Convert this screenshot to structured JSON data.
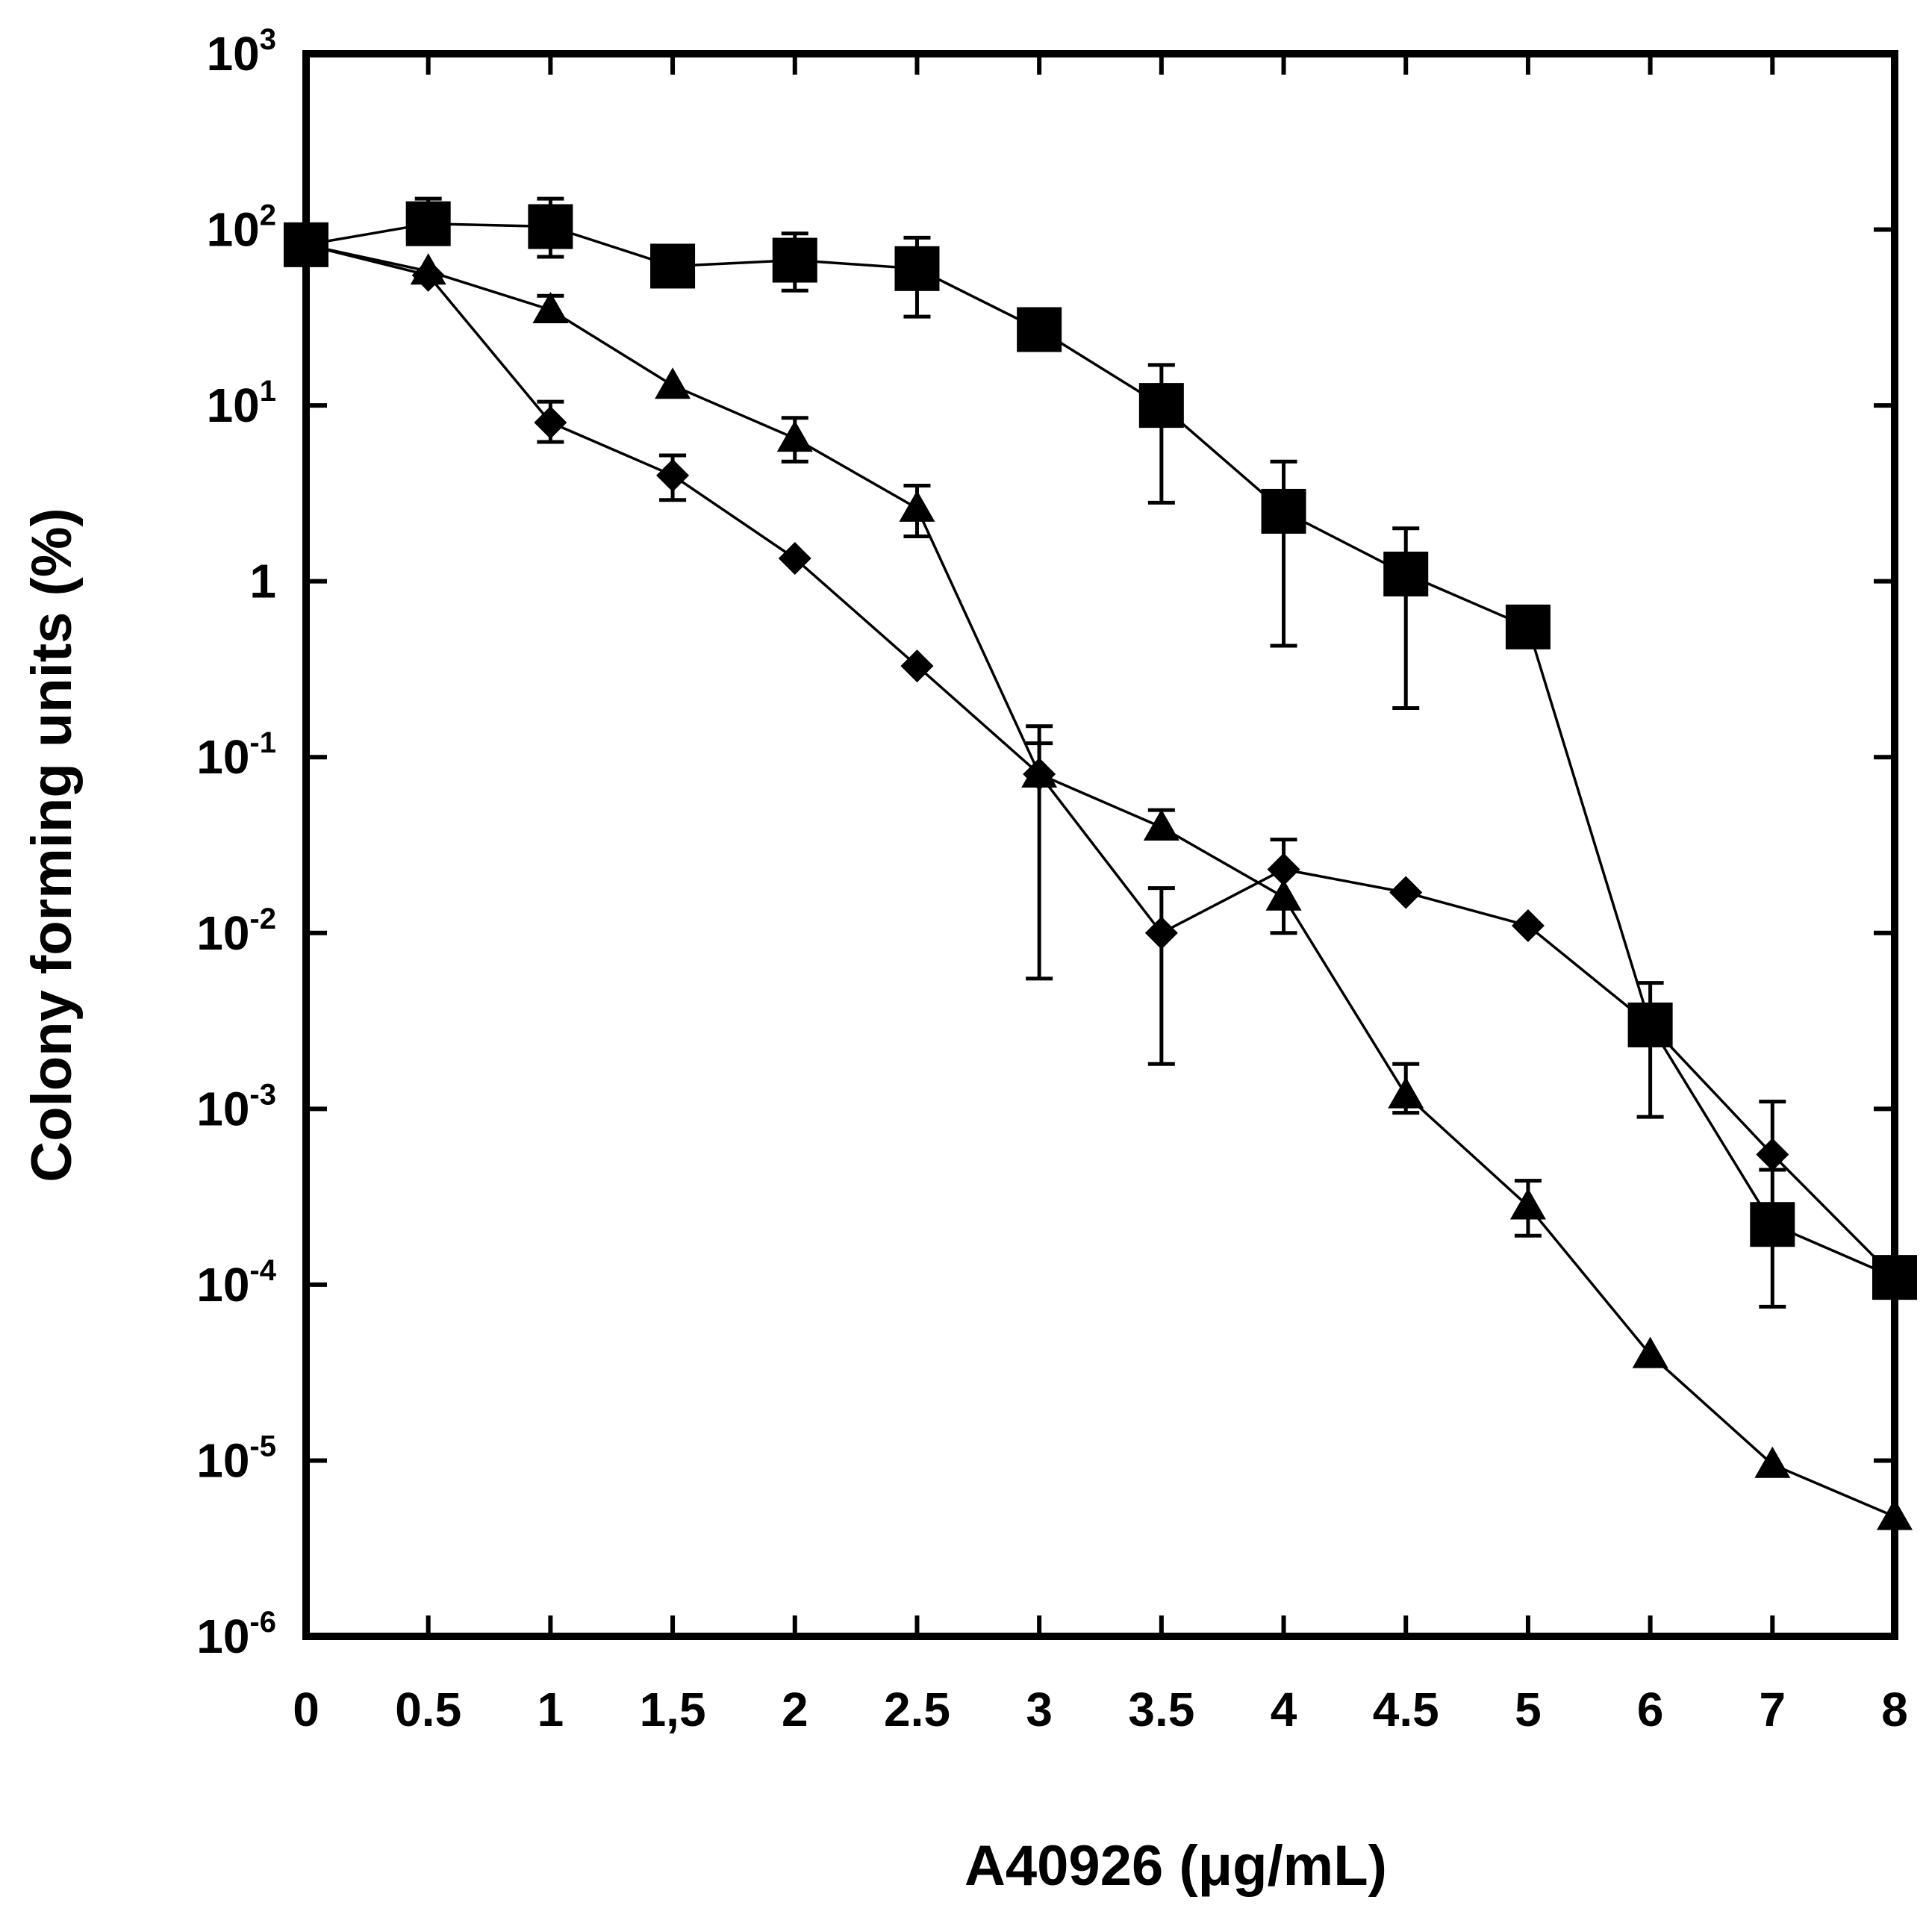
{
  "chart_data": {
    "type": "line",
    "title": "",
    "xlabel": "A40926 (μg/mL)",
    "ylabel": "Colony forming units (%)",
    "yscale": "log",
    "ylim": [
      1e-06,
      1000
    ],
    "grid": false,
    "categories": [
      "0",
      "0.5",
      "1",
      "1,5",
      "2",
      "2.5",
      "3",
      "3.5",
      "4",
      "4.5",
      "5",
      "6",
      "7",
      "8"
    ],
    "ytick_labels": [
      {
        "base": "10",
        "exp": "-6"
      },
      {
        "base": "10",
        "exp": "-5"
      },
      {
        "base": "10",
        "exp": "-4"
      },
      {
        "base": "10",
        "exp": "-3"
      },
      {
        "base": "10",
        "exp": "-2"
      },
      {
        "base": "10",
        "exp": "-1"
      },
      {
        "base": "1",
        "exp": ""
      },
      {
        "base": "10",
        "exp": "1"
      },
      {
        "base": "10",
        "exp": "2"
      },
      {
        "base": "10",
        "exp": "3"
      }
    ],
    "series": [
      {
        "name": "square",
        "marker": "square",
        "values": [
          82,
          108,
          104,
          62,
          67,
          60,
          27,
          10,
          2.5,
          1.1,
          0.55,
          0.003,
          0.00022,
          0.00011
        ],
        "err_upper": [
          null,
          150,
          150,
          null,
          95,
          90,
          null,
          17,
          4.8,
          2.0,
          null,
          0.0052,
          0.00045,
          null
        ],
        "err_lower": [
          null,
          null,
          70,
          null,
          45,
          32,
          null,
          2.8,
          0.43,
          0.19,
          null,
          0.0009,
          7.5e-05,
          null
        ]
      },
      {
        "name": "triangle",
        "marker": "triangle",
        "values": [
          82,
          58,
          35,
          13,
          6.5,
          2.6,
          0.08,
          0.04,
          0.016,
          0.0012,
          0.00028,
          4e-05,
          9.5e-06,
          4.8e-06
        ],
        "err_upper": [
          null,
          null,
          42,
          null,
          8.5,
          3.5,
          0.12,
          0.05,
          0.034,
          0.0018,
          0.00039,
          null,
          null,
          null
        ],
        "err_lower": [
          null,
          null,
          null,
          null,
          4.8,
          1.8,
          null,
          null,
          0.01,
          0.00095,
          0.00019,
          null,
          null,
          null
        ]
      },
      {
        "name": "diamond",
        "marker": "diamond",
        "values": [
          82,
          55,
          8,
          4,
          1.35,
          0.33,
          0.08,
          0.01,
          0.023,
          0.017,
          0.011,
          0.003,
          0.00055,
          0.00011
        ],
        "err_upper": [
          null,
          null,
          10.5,
          5.2,
          null,
          null,
          0.15,
          0.018,
          null,
          null,
          null,
          null,
          0.0011,
          null
        ],
        "err_lower": [
          null,
          null,
          6.2,
          2.9,
          null,
          null,
          0.0055,
          0.0018,
          null,
          null,
          null,
          null,
          null,
          null
        ]
      }
    ]
  }
}
